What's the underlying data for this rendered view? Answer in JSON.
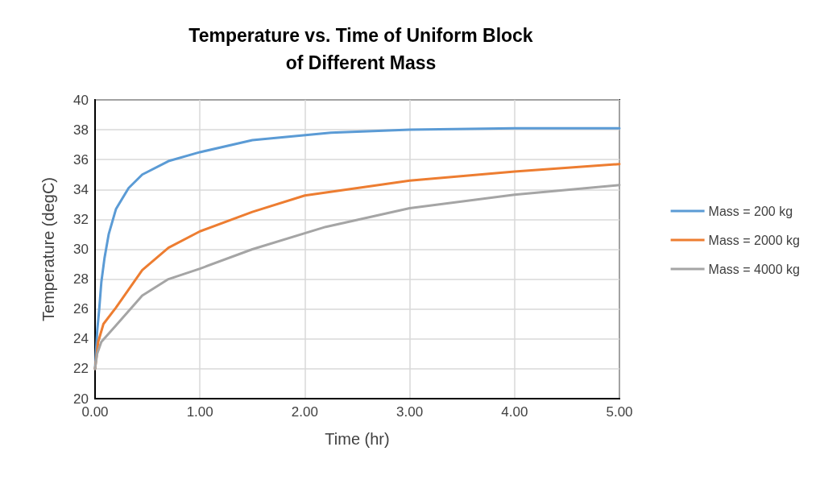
{
  "chart_data": {
    "type": "line",
    "title": "Temperature vs. Time of Uniform Block\nof Different Mass",
    "xlabel": "Time (hr)",
    "ylabel": "Temperature (degC)",
    "xlim": [
      0,
      5
    ],
    "xticks": [
      {
        "value": 0,
        "label": "0.00"
      },
      {
        "value": 1,
        "label": "1.00"
      },
      {
        "value": 2,
        "label": "2.00"
      },
      {
        "value": 3,
        "label": "3.00"
      },
      {
        "value": 4,
        "label": "4.00"
      },
      {
        "value": 5,
        "label": "5.00"
      }
    ],
    "ylim": [
      20,
      40
    ],
    "yticks": [
      20,
      22,
      24,
      26,
      28,
      30,
      32,
      34,
      36,
      38,
      40
    ],
    "grid": true,
    "legend": "right",
    "marker": "none",
    "line_style": "solid",
    "series": [
      {
        "name": "Mass = 200 kg",
        "color": "#5b9bd5",
        "x": [
          0,
          0.02,
          0.04,
          0.06,
          0.09,
          0.13,
          0.2,
          0.32,
          0.45,
          0.7,
          1,
          1.5,
          2.25,
          3,
          4,
          5
        ],
        "values": [
          22,
          24.5,
          26,
          27.8,
          29.4,
          31,
          32.7,
          34.1,
          35,
          35.9,
          36.5,
          37.3,
          37.8,
          38,
          38.1,
          38.1
        ]
      },
      {
        "name": "Mass = 2000 kg",
        "color": "#ed7d31",
        "x": [
          0,
          0.03,
          0.08,
          0.2,
          0.45,
          0.7,
          1,
          1.5,
          2,
          3,
          4,
          5
        ],
        "values": [
          22,
          23.8,
          25,
          26.1,
          28.6,
          30.1,
          31.2,
          32.5,
          33.6,
          34.6,
          35.2,
          35.7
        ]
      },
      {
        "name": "Mass = 4000 kg",
        "color": "#a5a5a5",
        "x": [
          0,
          0.02,
          0.06,
          0.2,
          0.45,
          0.7,
          1,
          1.5,
          2.2,
          3,
          4,
          5
        ],
        "values": [
          22,
          23,
          23.8,
          24.9,
          26.9,
          28,
          28.7,
          30,
          31.5,
          32.75,
          33.65,
          34.3
        ]
      }
    ]
  }
}
